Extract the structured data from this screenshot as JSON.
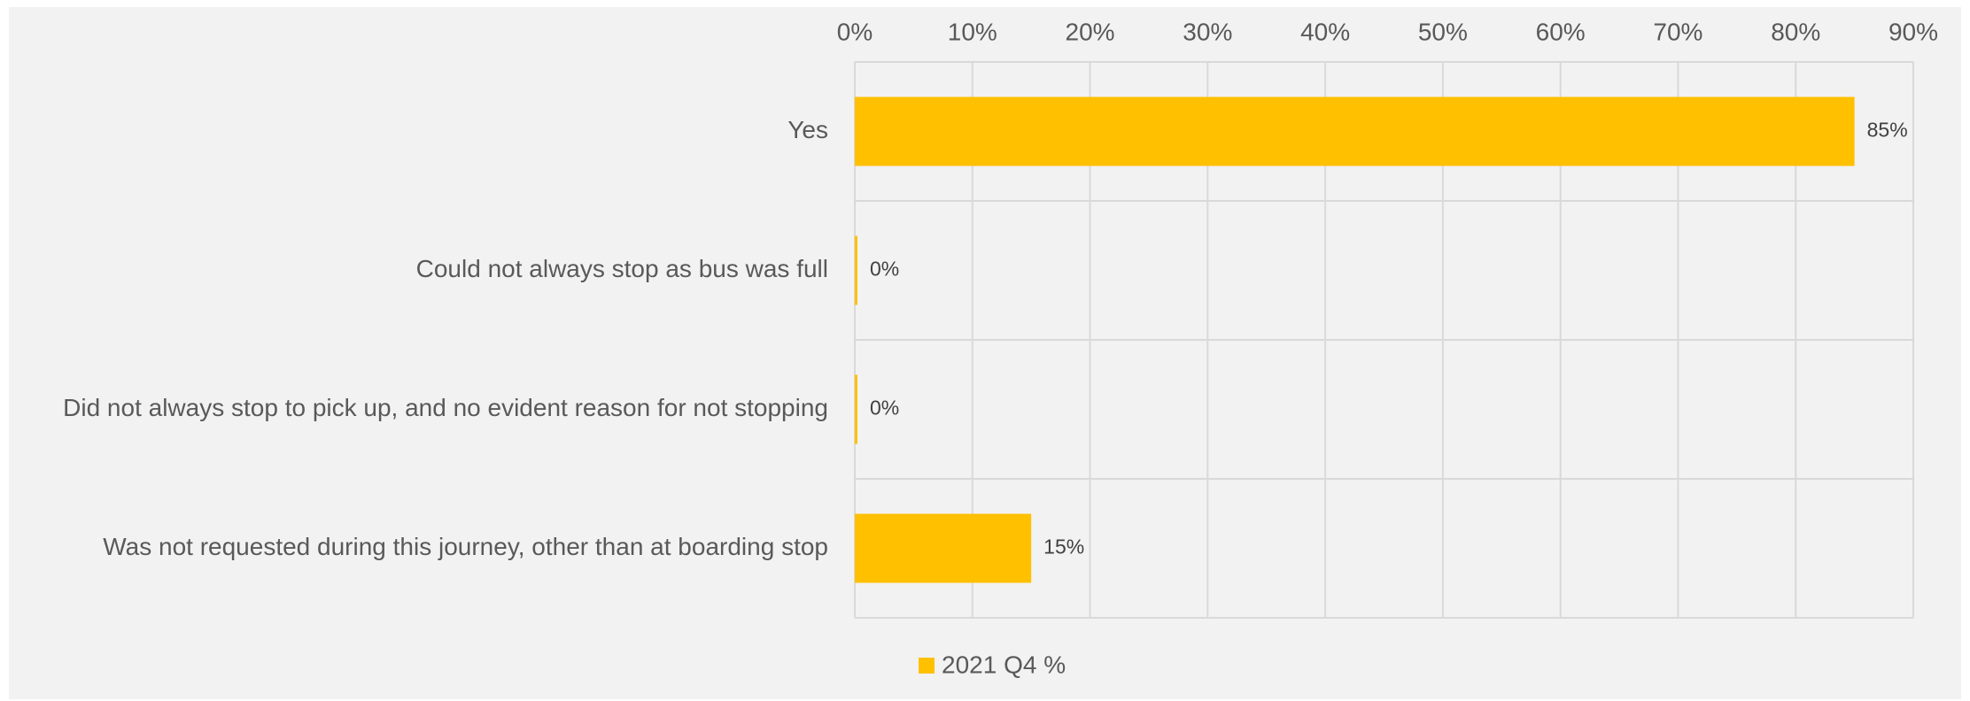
{
  "chart_data": {
    "type": "bar",
    "orientation": "horizontal",
    "categories": [
      "Yes",
      "Could not always stop as bus was full",
      "Did not always stop to pick up, and no evident reason for not stopping",
      "Was not requested during this journey, other than at boarding stop"
    ],
    "series": [
      {
        "name": "2021 Q4 %",
        "values": [
          0.85,
          0.0,
          0.0,
          0.15
        ],
        "data_labels": [
          "85%",
          "0%",
          "0%",
          "15%"
        ],
        "color": "#FFC000"
      }
    ],
    "x_ticks": [
      "0%",
      "10%",
      "20%",
      "30%",
      "40%",
      "50%",
      "60%",
      "70%",
      "80%",
      "90%"
    ],
    "xlim": [
      0,
      0.9
    ],
    "x_axis_position": "top",
    "grid": true,
    "legend_position": "bottom",
    "title": "",
    "xlabel": "",
    "ylabel": ""
  },
  "colors": {
    "background": "#F2F2F2",
    "bar": "#FFC000",
    "grid": "#D9D9D9",
    "text": "#595959"
  }
}
